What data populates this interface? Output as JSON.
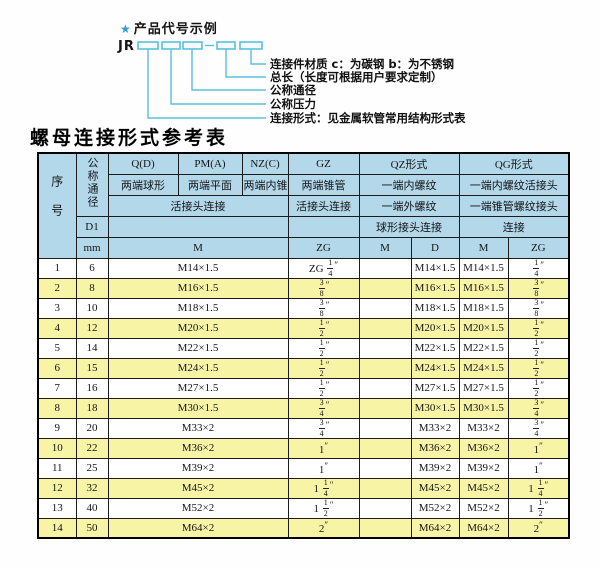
{
  "diagram": {
    "star": "★",
    "title": "产品代号示例",
    "prefix": "JR",
    "labels": [
      "连接件材质  c：为碳钢  b：为不锈钢",
      "总长（长度可根据用户要求定制）",
      "公称通径",
      "公称压力",
      "连接形式：见金属软管常用结构形式表"
    ]
  },
  "table": {
    "title": "螺母连接形式参考表",
    "header": {
      "serial": "序号",
      "diameter": "公称通径",
      "d1": "D1",
      "unit": "mm",
      "groups": [
        "Q(D)",
        "PM(A)",
        "NZ(C)",
        "GZ",
        "QZ形式",
        "QG形式"
      ],
      "types": [
        "两端球形",
        "两端平面",
        "两端内锥",
        "两端锥管",
        "一端内螺纹",
        "一端内螺纹活接头"
      ],
      "connections": [
        "活接头连接",
        "活接头连接",
        "一端外螺纹",
        "一端锥管螺纹接头"
      ],
      "sub_connections": [
        "球形接头连接",
        "连接"
      ],
      "thread_cols": [
        "M",
        "ZG",
        "M",
        "D",
        "M",
        "ZG"
      ]
    },
    "rows": [
      [
        "1",
        "6",
        "M14×1.5",
        "ZG 1/4\"",
        "",
        "M14×1.5",
        "M14×1.5",
        "1/4\""
      ],
      [
        "2",
        "8",
        "M16×1.5",
        "3/8\"",
        "",
        "M16×1.5",
        "M16×1.5",
        "3/8\""
      ],
      [
        "3",
        "10",
        "M18×1.5",
        "3/8\"",
        "",
        "M18×1.5",
        "M18×1.5",
        "3/8\""
      ],
      [
        "4",
        "12",
        "M20×1.5",
        "1/2\"",
        "",
        "M20×1.5",
        "M20×1.5",
        "1/2\""
      ],
      [
        "5",
        "14",
        "M22×1.5",
        "1/2\"",
        "",
        "M22×1.5",
        "M22×1.5",
        "1/2\""
      ],
      [
        "6",
        "15",
        "M24×1.5",
        "1/2\"",
        "",
        "M24×1.5",
        "M24×1.5",
        "1/2\""
      ],
      [
        "7",
        "16",
        "M27×1.5",
        "1/2\"",
        "",
        "M27×1.5",
        "M27×1.5",
        "1/2\""
      ],
      [
        "8",
        "18",
        "M30×1.5",
        "3/4\"",
        "",
        "M30×1.5",
        "M30×1.5",
        "3/4\""
      ],
      [
        "9",
        "20",
        "M33×2",
        "3/4\"",
        "",
        "M33×2",
        "M33×2",
        "3/4\""
      ],
      [
        "10",
        "22",
        "M36×2",
        "1\"",
        "",
        "M36×2",
        "M36×2",
        "1\""
      ],
      [
        "11",
        "25",
        "M39×2",
        "1\"",
        "",
        "M39×2",
        "M39×2",
        "1\""
      ],
      [
        "12",
        "32",
        "M45×2",
        "1 1/4\"",
        "",
        "M45×2",
        "M45×2",
        "1 1/4\""
      ],
      [
        "13",
        "40",
        "M52×2",
        "1 1/2\"",
        "",
        "M52×2",
        "M52×2",
        "1 1/2\""
      ],
      [
        "14",
        "50",
        "M64×2",
        "2\"",
        "",
        "M64×2",
        "M64×2",
        "2\""
      ]
    ]
  },
  "colors": {
    "header_bg": "#b2d8ea",
    "row_alt_bg": "#f8f4a6",
    "callout_line": "#5cc0dd",
    "star": "#2d9fd4",
    "border": "#1c1c1c"
  }
}
